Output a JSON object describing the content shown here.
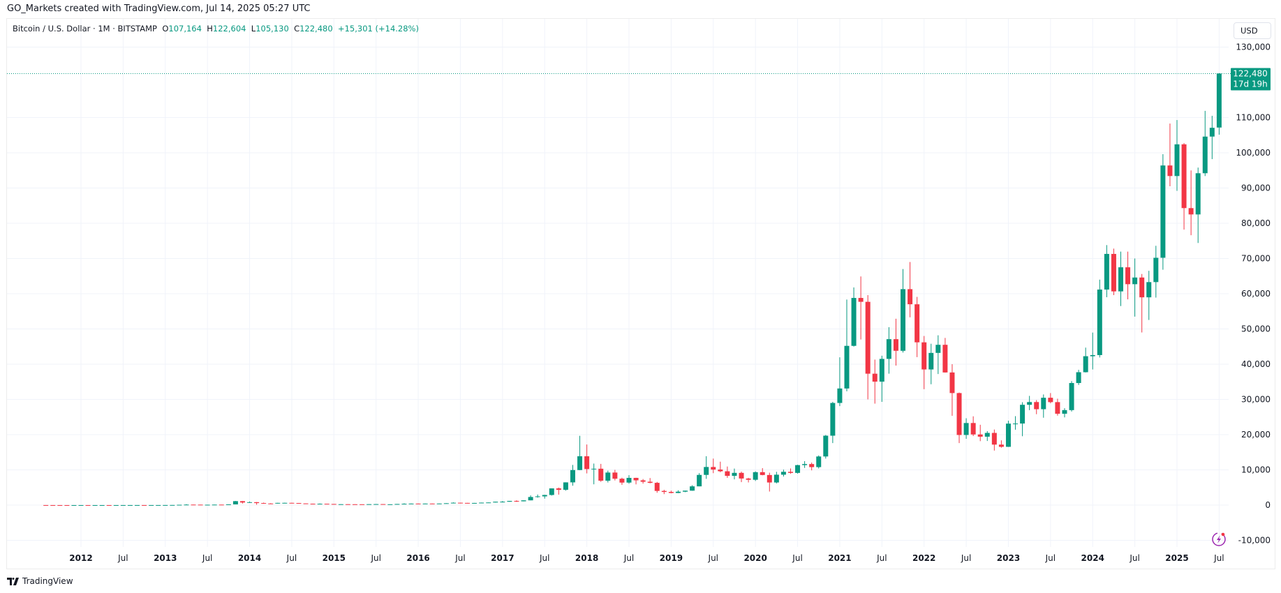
{
  "credit": "GO_Markets created with TradingView.com, Jul 14, 2025 05:27 UTC",
  "legend": {
    "symbol": "Bitcoin / U.S. Dollar · 1M · BITSTAMP",
    "o_label": "O",
    "o": "107,164",
    "h_label": "H",
    "h": "122,604",
    "l_label": "L",
    "l": "105,130",
    "c_label": "C",
    "c": "122,480",
    "change": "+15,301 (+14.28%)"
  },
  "currency_button": "USD",
  "last_price_label": {
    "price": "122,480",
    "countdown": "17d 19h"
  },
  "footer_brand": "TradingView",
  "icons": {
    "logo": "tradingview-logo-icon",
    "alert": "lightning-icon"
  },
  "colors": {
    "up": "#089981",
    "down": "#f23645",
    "grid": "#f0f3fa"
  },
  "chart_data": {
    "type": "candlestick",
    "interval": "1M",
    "ylim": [
      -10000,
      130000
    ],
    "y_ticks": [
      -10000,
      0,
      10000,
      20000,
      30000,
      40000,
      50000,
      60000,
      70000,
      80000,
      90000,
      100000,
      110000,
      130000
    ],
    "y_tick_labels": [
      "-10,000",
      "0",
      "10,000",
      "20,000",
      "30,000",
      "40,000",
      "50,000",
      "60,000",
      "70,000",
      "80,000",
      "90,000",
      "100,000",
      "110,000",
      "130,000"
    ],
    "x_tick_labels": [
      "2012",
      "Jul",
      "2013",
      "Jul",
      "2014",
      "Jul",
      "2015",
      "Jul",
      "2016",
      "Jul",
      "2017",
      "Jul",
      "2018",
      "Jul",
      "2019",
      "Jul",
      "2020",
      "Jul",
      "2021",
      "Jul",
      "2022",
      "Jul",
      "2023",
      "Jul",
      "2024",
      "Jul",
      "2025",
      "Jul"
    ],
    "grid": true,
    "columns": [
      "month",
      "open",
      "high",
      "low",
      "close"
    ],
    "candles": [
      [
        "2011-08",
        13.4,
        13.6,
        7.5,
        8.2
      ],
      [
        "2011-09",
        8.2,
        8.4,
        4.8,
        5.1
      ],
      [
        "2011-10",
        5.1,
        5.2,
        2.3,
        3.2
      ],
      [
        "2011-11",
        3.2,
        3.5,
        2.0,
        3.0
      ],
      [
        "2011-12",
        3.0,
        4.8,
        2.8,
        4.7
      ],
      [
        "2012-01",
        4.7,
        7.2,
        4.6,
        5.5
      ],
      [
        "2012-02",
        5.5,
        6.1,
        4.3,
        4.9
      ],
      [
        "2012-03",
        4.9,
        5.4,
        4.6,
        4.9
      ],
      [
        "2012-04",
        4.9,
        5.3,
        4.8,
        5.2
      ],
      [
        "2012-05",
        5.2,
        5.2,
        4.9,
        5.1
      ],
      [
        "2012-06",
        5.1,
        6.7,
        5.1,
        6.7
      ],
      [
        "2012-07",
        6.7,
        9.7,
        6.5,
        9.4
      ],
      [
        "2012-08",
        9.4,
        16.0,
        7.1,
        10.1
      ],
      [
        "2012-09",
        10.1,
        12.8,
        9.9,
        12.4
      ],
      [
        "2012-10",
        12.4,
        12.8,
        9.8,
        11.2
      ],
      [
        "2012-11",
        11.2,
        12.8,
        10.3,
        12.6
      ],
      [
        "2012-12",
        12.6,
        13.8,
        12.5,
        13.5
      ],
      [
        "2013-01",
        13.5,
        20.6,
        13.2,
        20.4
      ],
      [
        "2013-02",
        20.4,
        33.4,
        19.7,
        33.4
      ],
      [
        "2013-03",
        33.4,
        95,
        33.0,
        93
      ],
      [
        "2013-04",
        93,
        266,
        50,
        139
      ],
      [
        "2013-05",
        139,
        140,
        104,
        128
      ],
      [
        "2013-06",
        128,
        130,
        88,
        97
      ],
      [
        "2013-07",
        97,
        111,
        65,
        106
      ],
      [
        "2013-08",
        106,
        136,
        101,
        135
      ],
      [
        "2013-09",
        135,
        143,
        120,
        133
      ],
      [
        "2013-10",
        133,
        215,
        104,
        203
      ],
      [
        "2013-11",
        203,
        1163,
        200,
        1120
      ],
      [
        "2013-12",
        1120,
        1156,
        455,
        732
      ],
      [
        "2014-01",
        732,
        1020,
        740,
        829
      ],
      [
        "2014-02",
        829,
        870,
        102,
        573
      ],
      [
        "2014-03",
        573,
        710,
        440,
        458
      ],
      [
        "2014-04",
        458,
        550,
        340,
        446
      ],
      [
        "2014-05",
        446,
        635,
        420,
        628
      ],
      [
        "2014-06",
        628,
        680,
        555,
        641
      ],
      [
        "2014-07",
        641,
        660,
        565,
        585
      ],
      [
        "2014-08",
        585,
        600,
        440,
        478
      ],
      [
        "2014-09",
        478,
        493,
        365,
        387
      ],
      [
        "2014-10",
        387,
        417,
        275,
        338
      ],
      [
        "2014-11",
        338,
        460,
        312,
        378
      ],
      [
        "2014-12",
        378,
        382,
        300,
        320
      ],
      [
        "2015-01",
        320,
        320,
        152,
        217
      ],
      [
        "2015-02",
        217,
        265,
        210,
        254
      ],
      [
        "2015-03",
        254,
        300,
        236,
        244
      ],
      [
        "2015-04",
        244,
        260,
        214,
        236
      ],
      [
        "2015-05",
        236,
        248,
        225,
        230
      ],
      [
        "2015-06",
        230,
        268,
        220,
        263
      ],
      [
        "2015-07",
        263,
        317,
        253,
        284
      ],
      [
        "2015-08",
        284,
        285,
        198,
        231
      ],
      [
        "2015-09",
        231,
        245,
        225,
        236
      ],
      [
        "2015-10",
        236,
        333,
        235,
        314
      ],
      [
        "2015-11",
        314,
        502,
        306,
        378
      ],
      [
        "2015-12",
        378,
        466,
        350,
        430
      ],
      [
        "2016-01",
        430,
        464,
        350,
        368
      ],
      [
        "2016-02",
        368,
        448,
        364,
        437
      ],
      [
        "2016-03",
        437,
        440,
        393,
        416
      ],
      [
        "2016-04",
        416,
        467,
        412,
        448
      ],
      [
        "2016-05",
        448,
        551,
        440,
        531
      ],
      [
        "2016-06",
        531,
        780,
        525,
        673
      ],
      [
        "2016-07",
        673,
        690,
        470,
        624
      ],
      [
        "2016-08",
        624,
        625,
        466,
        575
      ],
      [
        "2016-09",
        575,
        620,
        573,
        609
      ],
      [
        "2016-10",
        609,
        720,
        603,
        700
      ],
      [
        "2016-11",
        700,
        752,
        685,
        743
      ],
      [
        "2016-12",
        743,
        980,
        740,
        966
      ],
      [
        "2017-01",
        966,
        1150,
        750,
        970
      ],
      [
        "2017-02",
        970,
        1200,
        920,
        1190
      ],
      [
        "2017-03",
        1190,
        1350,
        890,
        1080
      ],
      [
        "2017-04",
        1080,
        1350,
        1060,
        1350
      ],
      [
        "2017-05",
        1350,
        2760,
        1350,
        2300
      ],
      [
        "2017-06",
        2300,
        3000,
        2100,
        2480
      ],
      [
        "2017-07",
        2480,
        2930,
        1840,
        2870
      ],
      [
        "2017-08",
        2870,
        4760,
        2700,
        4740
      ],
      [
        "2017-09",
        4740,
        4980,
        2970,
        4340
      ],
      [
        "2017-10",
        4340,
        6470,
        4100,
        6450
      ],
      [
        "2017-11",
        6450,
        11400,
        5500,
        9950
      ],
      [
        "2017-12",
        9950,
        19666,
        9900,
        13860
      ],
      [
        "2018-01",
        13860,
        17200,
        9000,
        10220
      ],
      [
        "2018-02",
        10220,
        11790,
        5900,
        10330
      ],
      [
        "2018-03",
        10330,
        11700,
        6600,
        6930
      ],
      [
        "2018-04",
        6930,
        9770,
        6430,
        9240
      ],
      [
        "2018-05",
        9240,
        10000,
        7000,
        7490
      ],
      [
        "2018-06",
        7490,
        7780,
        5750,
        6390
      ],
      [
        "2018-07",
        6390,
        8500,
        6070,
        7730
      ],
      [
        "2018-08",
        7730,
        7760,
        5880,
        7030
      ],
      [
        "2018-09",
        7030,
        7400,
        6100,
        6630
      ],
      [
        "2018-10",
        6630,
        7680,
        6180,
        6320
      ],
      [
        "2018-11",
        6320,
        6590,
        3500,
        4020
      ],
      [
        "2018-12",
        4020,
        4340,
        3120,
        3740
      ],
      [
        "2019-01",
        3740,
        4100,
        3350,
        3440
      ],
      [
        "2019-02",
        3440,
        4200,
        3380,
        3810
      ],
      [
        "2019-03",
        3810,
        4110,
        3680,
        4100
      ],
      [
        "2019-04",
        4100,
        5640,
        4050,
        5320
      ],
      [
        "2019-05",
        5320,
        9070,
        5320,
        8570
      ],
      [
        "2019-06",
        8570,
        13880,
        7450,
        10820
      ],
      [
        "2019-07",
        10820,
        13200,
        9070,
        10090
      ],
      [
        "2019-08",
        10090,
        12330,
        9330,
        9600
      ],
      [
        "2019-09",
        9600,
        10950,
        7730,
        8300
      ],
      [
        "2019-10",
        8300,
        10370,
        7300,
        9150
      ],
      [
        "2019-11",
        9150,
        9510,
        6520,
        7550
      ],
      [
        "2019-12",
        7550,
        7750,
        6430,
        7190
      ],
      [
        "2020-01",
        7190,
        9580,
        6850,
        9350
      ],
      [
        "2020-02",
        9350,
        10500,
        8450,
        8540
      ],
      [
        "2020-03",
        8540,
        9200,
        3850,
        6420
      ],
      [
        "2020-04",
        6420,
        9450,
        6150,
        8630
      ],
      [
        "2020-05",
        8630,
        10070,
        8100,
        9450
      ],
      [
        "2020-06",
        9450,
        10400,
        8900,
        9140
      ],
      [
        "2020-07",
        9140,
        11450,
        8930,
        11350
      ],
      [
        "2020-08",
        11350,
        12470,
        10550,
        11650
      ],
      [
        "2020-09",
        11650,
        12080,
        9860,
        10780
      ],
      [
        "2020-10",
        10780,
        14100,
        10390,
        13800
      ],
      [
        "2020-11",
        13800,
        19900,
        13200,
        19700
      ],
      [
        "2020-12",
        19700,
        29300,
        17600,
        28990
      ],
      [
        "2021-01",
        28990,
        41950,
        28100,
        33100
      ],
      [
        "2021-02",
        33100,
        58350,
        32300,
        45200
      ],
      [
        "2021-03",
        45200,
        61780,
        45000,
        58800
      ],
      [
        "2021-04",
        58800,
        64900,
        47000,
        57700
      ],
      [
        "2021-05",
        57700,
        59600,
        30000,
        37300
      ],
      [
        "2021-06",
        37300,
        41300,
        28800,
        35040
      ],
      [
        "2021-07",
        35040,
        42400,
        29300,
        41500
      ],
      [
        "2021-08",
        41500,
        50500,
        37300,
        47100
      ],
      [
        "2021-09",
        47100,
        52900,
        39600,
        43800
      ],
      [
        "2021-10",
        43800,
        67000,
        43300,
        61300
      ],
      [
        "2021-11",
        61300,
        69000,
        53300,
        57000
      ],
      [
        "2021-12",
        57000,
        59100,
        42000,
        46200
      ],
      [
        "2022-01",
        46200,
        48000,
        32900,
        38500
      ],
      [
        "2022-02",
        38500,
        45800,
        34300,
        43200
      ],
      [
        "2022-03",
        43200,
        48200,
        37200,
        45500
      ],
      [
        "2022-04",
        45500,
        47450,
        37600,
        37650
      ],
      [
        "2022-05",
        37650,
        40000,
        25350,
        31800
      ],
      [
        "2022-06",
        31800,
        31950,
        17600,
        19900
      ],
      [
        "2022-07",
        19900,
        24650,
        18800,
        23300
      ],
      [
        "2022-08",
        23300,
        25200,
        19600,
        20050
      ],
      [
        "2022-09",
        20050,
        22800,
        18150,
        19420
      ],
      [
        "2022-10",
        19420,
        21000,
        18200,
        20490
      ],
      [
        "2022-11",
        20490,
        21450,
        15480,
        17170
      ],
      [
        "2022-12",
        17170,
        18380,
        16300,
        16540
      ],
      [
        "2023-01",
        16540,
        23950,
        16500,
        23130
      ],
      [
        "2023-02",
        23130,
        25250,
        21400,
        23150
      ],
      [
        "2023-03",
        23150,
        29200,
        19550,
        28470
      ],
      [
        "2023-04",
        28470,
        31000,
        26950,
        29250
      ],
      [
        "2023-05",
        29250,
        29800,
        25800,
        27220
      ],
      [
        "2023-06",
        27220,
        31400,
        24800,
        30470
      ],
      [
        "2023-07",
        30470,
        31800,
        28900,
        29230
      ],
      [
        "2023-08",
        29230,
        30200,
        25400,
        25930
      ],
      [
        "2023-09",
        25930,
        27500,
        24900,
        26960
      ],
      [
        "2023-10",
        26960,
        35200,
        26550,
        34650
      ],
      [
        "2023-11",
        34650,
        38400,
        34100,
        37720
      ],
      [
        "2023-12",
        37720,
        44700,
        37650,
        42260
      ],
      [
        "2024-01",
        42260,
        48970,
        38500,
        42580
      ],
      [
        "2024-02",
        42580,
        64000,
        41900,
        61180
      ],
      [
        "2024-03",
        61180,
        73800,
        59000,
        71300
      ],
      [
        "2024-04",
        71300,
        72800,
        59600,
        60660
      ],
      [
        "2024-05",
        60660,
        71950,
        56500,
        67500
      ],
      [
        "2024-06",
        67500,
        71950,
        58400,
        62700
      ],
      [
        "2024-07",
        62700,
        70000,
        53500,
        64600
      ],
      [
        "2024-08",
        64600,
        65600,
        49000,
        58970
      ],
      [
        "2024-09",
        58970,
        66500,
        52550,
        63300
      ],
      [
        "2024-10",
        63300,
        73600,
        58900,
        70200
      ],
      [
        "2024-11",
        70200,
        99600,
        66800,
        96400
      ],
      [
        "2024-12",
        96400,
        108300,
        90500,
        93400
      ],
      [
        "2025-01",
        93400,
        109300,
        89200,
        102400
      ],
      [
        "2025-02",
        102400,
        102750,
        78200,
        84300
      ],
      [
        "2025-03",
        84300,
        95000,
        76600,
        82500
      ],
      [
        "2025-04",
        82500,
        95800,
        74400,
        94200
      ],
      [
        "2025-05",
        94200,
        111900,
        93400,
        104600
      ],
      [
        "2025-06",
        104600,
        110500,
        98200,
        107100
      ],
      [
        "2025-07",
        107164,
        122604,
        105130,
        122480
      ]
    ]
  }
}
